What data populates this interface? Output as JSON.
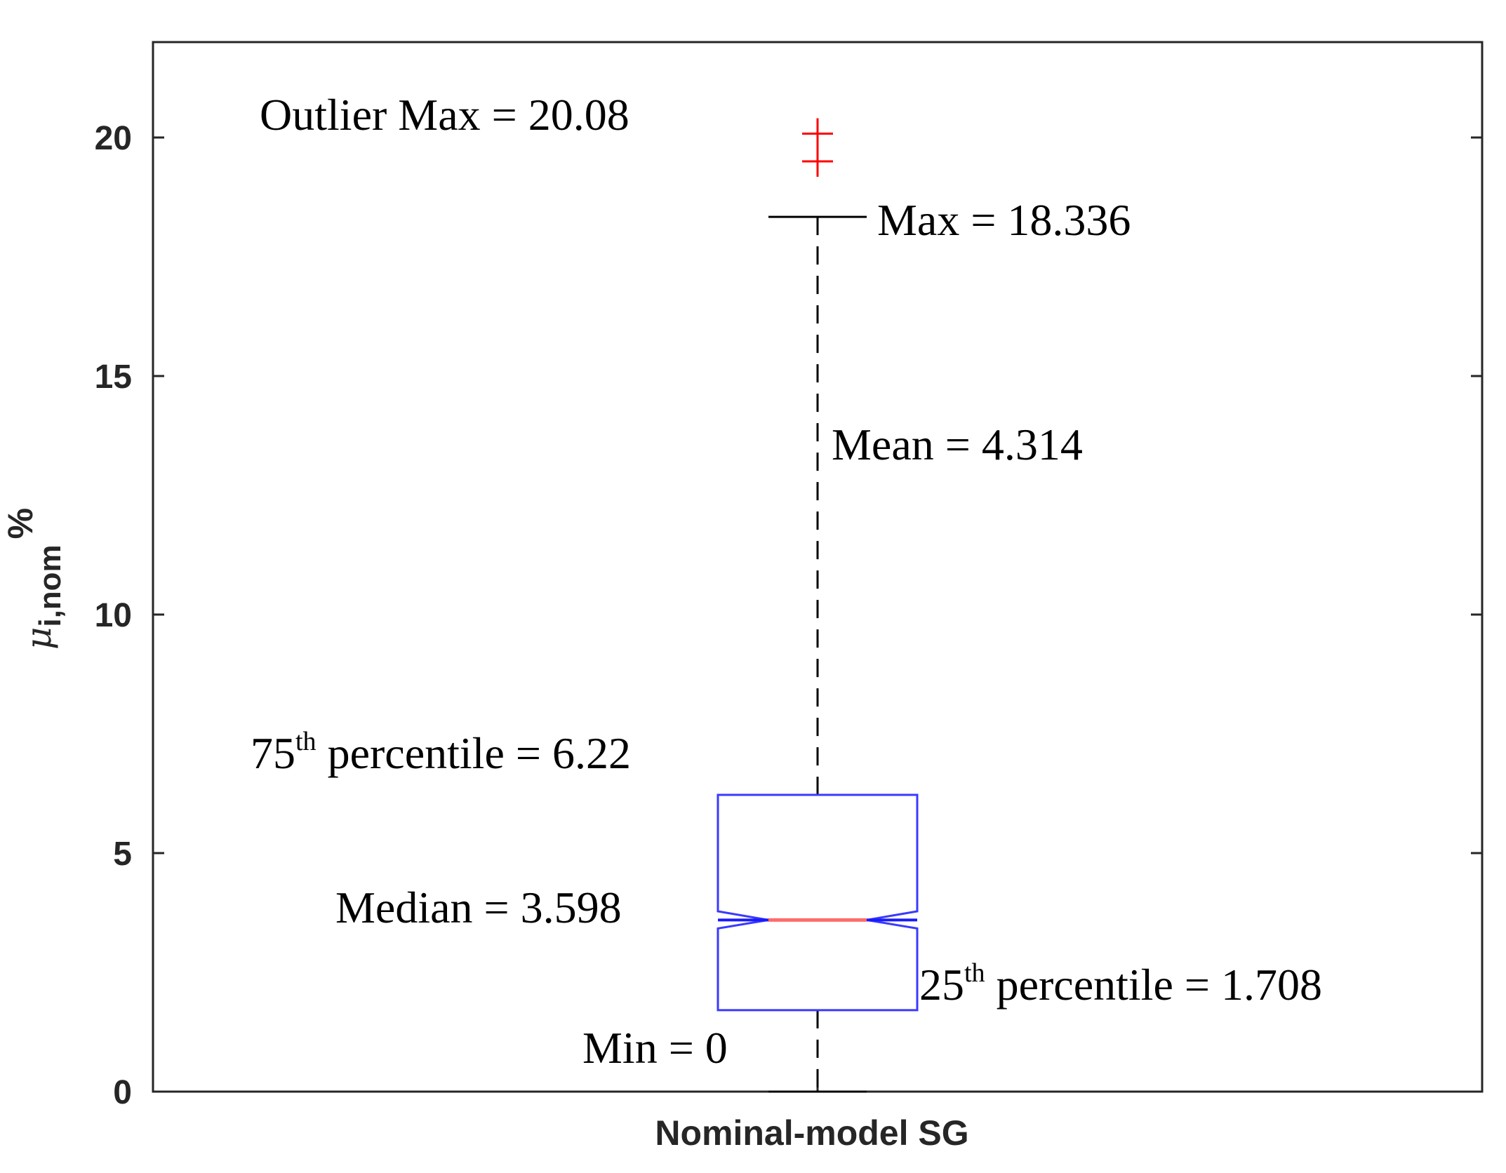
{
  "chart_data": {
    "type": "box",
    "categories": [
      "Nominal-model SG"
    ],
    "ylabel": {
      "symbol": "μ",
      "subscript": "i,nom",
      "unit": "%"
    },
    "ylim": [
      0,
      22
    ],
    "yticks": [
      0,
      5,
      10,
      15,
      20
    ],
    "grid": false,
    "legend": "none",
    "notched": true,
    "box": {
      "min": 0,
      "q1": 1.708,
      "median": 3.598,
      "q3": 6.22,
      "max": 18.336,
      "mean": 4.314,
      "outliers": [
        19.5,
        20.08
      ],
      "notch_low": 3.42,
      "notch_high": 3.78
    },
    "annotations": {
      "outlier_max": "Outlier Max = 20.08",
      "max": "Max = 18.336",
      "mean": "Mean = 4.314",
      "q3_prefix": "75",
      "q3_sup": "th",
      "q3_rest": " percentile = 6.22",
      "median": "Median = 3.598",
      "q1_prefix": "25",
      "q1_sup": "th",
      "q1_rest": " percentile = 1.708",
      "min": "Min = 0"
    },
    "colors": {
      "box": "#3a3aff",
      "median": "#ff6b6b",
      "notch_median": "#1a1aff",
      "outlier": "#ff0000",
      "whisker": "#000000",
      "mean_text": "#7030a0",
      "axis": "#262626"
    }
  }
}
